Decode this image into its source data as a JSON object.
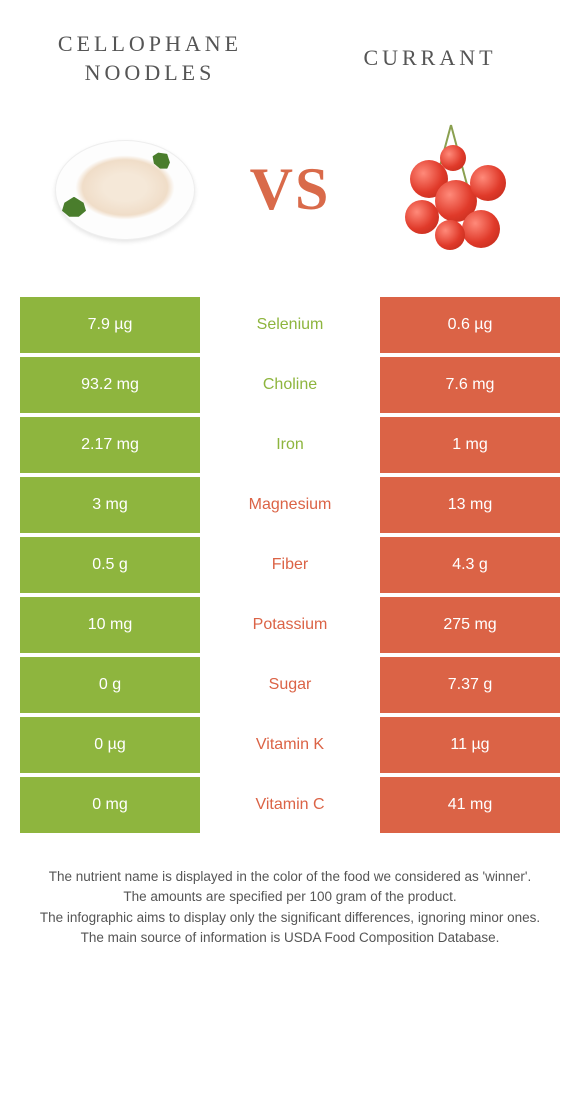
{
  "colors": {
    "left": "#8eb53e",
    "right": "#db6346",
    "bg": "#ffffff",
    "text": "#555555"
  },
  "header": {
    "left_title_line1": "CELLOPHANE",
    "left_title_line2": "NOODLES",
    "right_title": "CURRANT",
    "vs": "VS"
  },
  "rows": [
    {
      "nutrient": "Selenium",
      "left": "7.9 µg",
      "right": "0.6 µg",
      "winner": "left"
    },
    {
      "nutrient": "Choline",
      "left": "93.2 mg",
      "right": "7.6 mg",
      "winner": "left"
    },
    {
      "nutrient": "Iron",
      "left": "2.17 mg",
      "right": "1 mg",
      "winner": "left"
    },
    {
      "nutrient": "Magnesium",
      "left": "3 mg",
      "right": "13 mg",
      "winner": "right"
    },
    {
      "nutrient": "Fiber",
      "left": "0.5 g",
      "right": "4.3 g",
      "winner": "right"
    },
    {
      "nutrient": "Potassium",
      "left": "10 mg",
      "right": "275 mg",
      "winner": "right"
    },
    {
      "nutrient": "Sugar",
      "left": "0 g",
      "right": "7.37 g",
      "winner": "right"
    },
    {
      "nutrient": "Vitamin K",
      "left": "0 µg",
      "right": "11 µg",
      "winner": "right"
    },
    {
      "nutrient": "Vitamin C",
      "left": "0 mg",
      "right": "41 mg",
      "winner": "right"
    }
  ],
  "footer": {
    "line1": "The nutrient name is displayed in the color of the food we considered as 'winner'.",
    "line2": "The amounts are specified per 100 gram of the product.",
    "line3": "The infographic aims to display only the significant differences, ignoring minor ones.",
    "line4": "The main source of information is USDA Food Composition Database."
  }
}
